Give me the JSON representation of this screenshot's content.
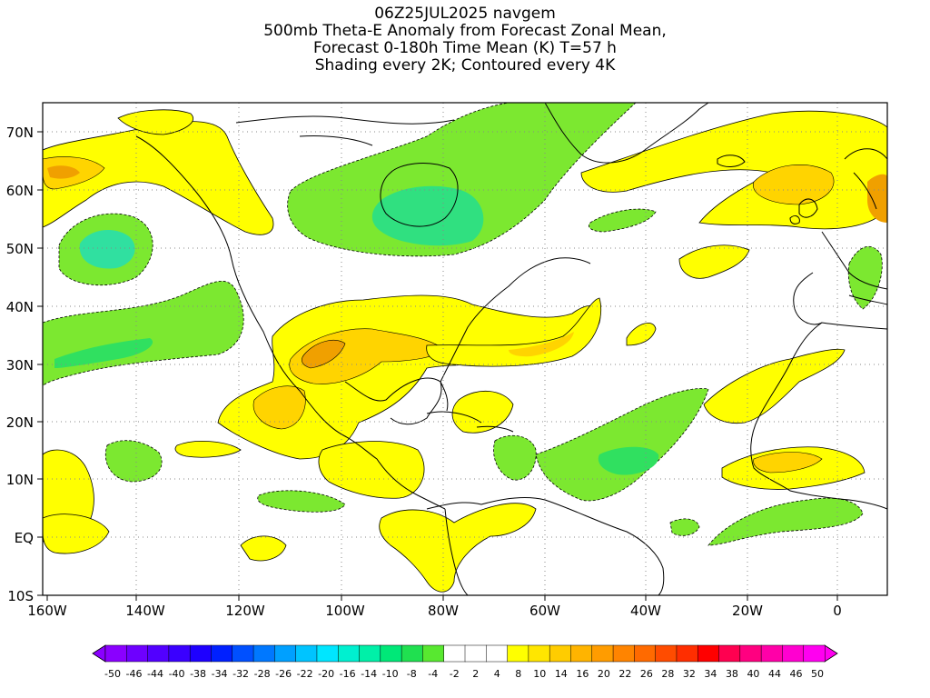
{
  "title": {
    "lines": [
      "06Z25JUL2025 navgem",
      "500mb Theta-E Anomaly from Forecast Zonal Mean,",
      "Forecast 0-180h Time Mean (K) T=57 h",
      "Shading every 2K; Contoured every 4K"
    ]
  },
  "map": {
    "lat_labels": [
      "70N",
      "60N",
      "50N",
      "40N",
      "30N",
      "20N",
      "10N",
      "EQ",
      "10S"
    ],
    "lon_labels": [
      "160W",
      "140W",
      "120W",
      "100W",
      "80W",
      "60W",
      "40W",
      "20W",
      "0"
    ]
  },
  "colorbar": {
    "labels": [
      "-50",
      "-46",
      "-44",
      "-40",
      "-38",
      "-34",
      "-32",
      "-28",
      "-26",
      "-22",
      "-20",
      "-16",
      "-14",
      "-10",
      "-8",
      "-4",
      "-2",
      "2",
      "4",
      "8",
      "10",
      "14",
      "16",
      "20",
      "22",
      "26",
      "28",
      "32",
      "34",
      "38",
      "40",
      "44",
      "46",
      "50"
    ],
    "colors": [
      "#8a00ff",
      "#6e00ff",
      "#5200ff",
      "#3a00ff",
      "#1e00ff",
      "#0020ff",
      "#0050ff",
      "#0078ff",
      "#00a0ff",
      "#00c4ff",
      "#00e6ff",
      "#00f0d0",
      "#00f0a8",
      "#00e878",
      "#20e050",
      "#58e830",
      "#ffffff",
      "#ffffff",
      "#ffffff",
      "#ffff00",
      "#ffe600",
      "#ffcc00",
      "#ffb400",
      "#ff9c00",
      "#ff8400",
      "#ff6a00",
      "#ff4c00",
      "#ff2e00",
      "#ff0000",
      "#ff0050",
      "#ff0080",
      "#ff00a8",
      "#ff00d0",
      "#ff00f0"
    ]
  },
  "shading_colors": {
    "green_light": "#7ce830",
    "green_mid": "#30e060",
    "green_teal": "#20e0a0",
    "yellow": "#ffff00",
    "gold": "#ffd400",
    "orange": "#f0a000"
  }
}
